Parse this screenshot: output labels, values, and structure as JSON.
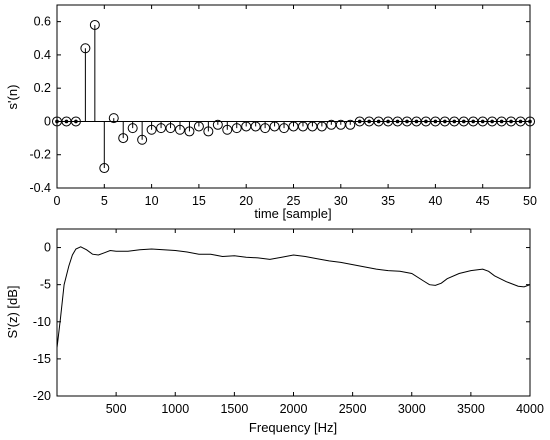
{
  "chart_data": [
    {
      "type": "stem",
      "xlabel": "time [sample]",
      "ylabel": "s'(n)",
      "xlim": [
        0,
        50
      ],
      "ylim": [
        -0.4,
        0.7
      ],
      "xticks": [
        0,
        5,
        10,
        15,
        20,
        25,
        30,
        35,
        40,
        45,
        50
      ],
      "yticks": [
        -0.4,
        -0.2,
        0,
        0.2,
        0.4,
        0.6
      ],
      "ytick_labels": [
        "-0.4",
        "-0.2",
        "0",
        "0.2",
        "0.4",
        "0.6"
      ],
      "grid": false,
      "marker": "open-circle",
      "filled_dot_indices": [
        0,
        1,
        2,
        32,
        33,
        34,
        35,
        36,
        37,
        38,
        39,
        40,
        41,
        42,
        43,
        44,
        45,
        46,
        47,
        48,
        49,
        50
      ],
      "x": [
        0,
        1,
        2,
        3,
        4,
        5,
        6,
        7,
        8,
        9,
        10,
        11,
        12,
        13,
        14,
        15,
        16,
        17,
        18,
        19,
        20,
        21,
        22,
        23,
        24,
        25,
        26,
        27,
        28,
        29,
        30,
        31,
        32,
        33,
        34,
        35,
        36,
        37,
        38,
        39,
        40,
        41,
        42,
        43,
        44,
        45,
        46,
        47,
        48,
        49,
        50
      ],
      "values": [
        0,
        0,
        0,
        0.44,
        0.58,
        -0.28,
        0.02,
        -0.1,
        -0.04,
        -0.11,
        -0.05,
        -0.04,
        -0.04,
        -0.05,
        -0.06,
        -0.03,
        -0.06,
        -0.02,
        -0.05,
        -0.04,
        -0.03,
        -0.03,
        -0.04,
        -0.03,
        -0.04,
        -0.03,
        -0.03,
        -0.03,
        -0.03,
        -0.02,
        -0.02,
        -0.02,
        0,
        0,
        0,
        0,
        0,
        0,
        0,
        0,
        0,
        0,
        0,
        0,
        0,
        0,
        0,
        0,
        0,
        0,
        0
      ]
    },
    {
      "type": "line",
      "xlabel": "Frequency [Hz]",
      "ylabel": "S'(z) [dB]",
      "xlim": [
        0,
        4000
      ],
      "ylim": [
        -20,
        2.5
      ],
      "xticks": [
        500,
        1000,
        1500,
        2000,
        2500,
        3000,
        3500,
        4000
      ],
      "yticks": [
        -20,
        -15,
        -10,
        -5,
        0
      ],
      "grid": false,
      "x": [
        0,
        30,
        60,
        100,
        130,
        160,
        200,
        250,
        300,
        350,
        400,
        450,
        500,
        600,
        700,
        800,
        900,
        1000,
        1100,
        1200,
        1300,
        1400,
        1500,
        1600,
        1700,
        1800,
        1900,
        2000,
        2100,
        2200,
        2300,
        2400,
        2500,
        2600,
        2700,
        2800,
        2900,
        3000,
        3100,
        3150,
        3200,
        3250,
        3300,
        3400,
        3500,
        3600,
        3650,
        3700,
        3800,
        3900,
        3950,
        4000
      ],
      "values": [
        -13.5,
        -9.5,
        -5.0,
        -2.5,
        -1.0,
        -0.2,
        0.1,
        -0.3,
        -0.9,
        -1.0,
        -0.7,
        -0.4,
        -0.5,
        -0.5,
        -0.3,
        -0.2,
        -0.3,
        -0.4,
        -0.6,
        -0.9,
        -0.9,
        -1.2,
        -1.1,
        -1.3,
        -1.4,
        -1.6,
        -1.3,
        -1.0,
        -1.2,
        -1.5,
        -1.8,
        -2.0,
        -2.3,
        -2.6,
        -2.9,
        -3.1,
        -3.2,
        -3.5,
        -4.5,
        -5.0,
        -5.1,
        -4.8,
        -4.2,
        -3.5,
        -3.1,
        -2.9,
        -3.2,
        -3.8,
        -4.6,
        -5.2,
        -5.3,
        -5.0
      ]
    }
  ]
}
